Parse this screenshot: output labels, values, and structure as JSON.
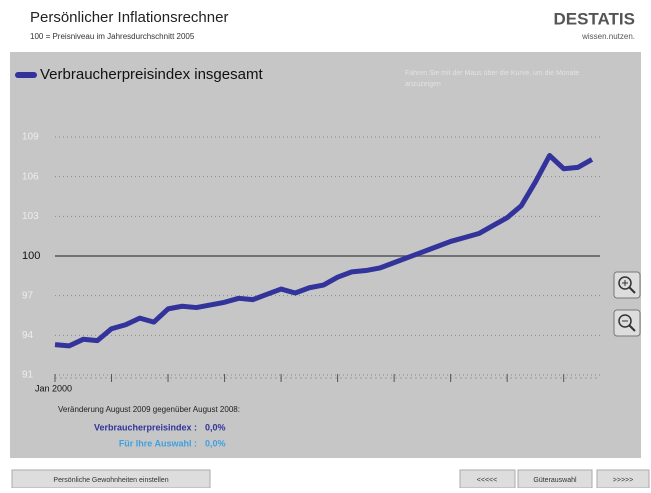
{
  "header": {
    "title": "Persönlicher Inflationsrechner",
    "subtitle": "100 = Preisniveau im Jahresdurchschnitt 2005",
    "logo": "DESTATIS",
    "logo_tagline": "wissen.nutzen."
  },
  "hint": "Fahren Sie mit der Maus über die Kurve, um die Monate anzuzeigen",
  "chart_data": {
    "type": "line",
    "categories": [
      "Jan 2000",
      null,
      null,
      null,
      null,
      null,
      null,
      null,
      null,
      null,
      null,
      null,
      null,
      null,
      null,
      null,
      null,
      null,
      null,
      null,
      null,
      null,
      null,
      null,
      null,
      null,
      null,
      null,
      null,
      null,
      null,
      null,
      null,
      null,
      null,
      null,
      null,
      null,
      null
    ],
    "series": [
      {
        "name": "Verbraucherpreisindex insgesamt",
        "color": "#33339c",
        "values": [
          93.3,
          93.2,
          93.7,
          93.6,
          94.5,
          94.8,
          95.3,
          95.0,
          96.0,
          96.2,
          96.1,
          96.3,
          96.5,
          96.8,
          96.7,
          97.1,
          97.5,
          97.2,
          97.6,
          97.8,
          98.4,
          98.8,
          98.9,
          99.1,
          99.5,
          99.9,
          100.3,
          100.7,
          101.1,
          101.4,
          101.7,
          102.3,
          102.9,
          103.8,
          105.6,
          107.6,
          106.6,
          106.7,
          107.3
        ]
      }
    ],
    "ylim": [
      91,
      109
    ],
    "yticks": [
      91,
      94,
      97,
      100,
      103,
      106,
      109
    ],
    "grid": true,
    "reference_line": 100
  },
  "summary": {
    "heading": "Veränderung August 2009 gegenüber August 2008:",
    "rows": [
      {
        "label": "Verbraucherpreisindex :",
        "value": "0,0%"
      },
      {
        "label": "Für Ihre Auswahl :",
        "value": "0,0%"
      }
    ]
  },
  "footer": {
    "buttons": [
      "Persönliche Gewohnheiten einstellen",
      "<<<<<",
      "Güterauswahl",
      ">>>>>"
    ]
  }
}
